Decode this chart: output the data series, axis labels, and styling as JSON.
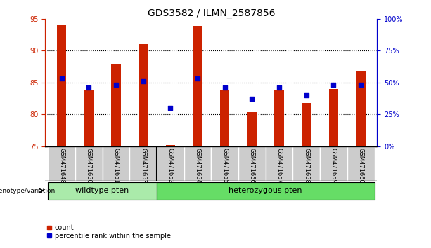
{
  "title": "GDS3582 / ILMN_2587856",
  "samples": [
    "GSM471648",
    "GSM471650",
    "GSM471651",
    "GSM471653",
    "GSM471652",
    "GSM471654",
    "GSM471655",
    "GSM471656",
    "GSM471657",
    "GSM471658",
    "GSM471659",
    "GSM471660"
  ],
  "count_values": [
    94.0,
    83.8,
    87.8,
    91.0,
    75.2,
    93.8,
    83.8,
    80.4,
    83.8,
    81.8,
    84.0,
    86.7
  ],
  "percentile_values": [
    53.0,
    46.0,
    48.0,
    51.0,
    30.0,
    53.0,
    46.0,
    37.0,
    46.0,
    40.0,
    48.0,
    48.0
  ],
  "ylim_left": [
    75,
    95
  ],
  "ylim_right": [
    0,
    100
  ],
  "yticks_left": [
    75,
    80,
    85,
    90,
    95
  ],
  "yticks_right": [
    0,
    25,
    50,
    75,
    100
  ],
  "ytick_labels_right": [
    "0%",
    "25%",
    "50%",
    "75%",
    "100%"
  ],
  "bar_color": "#cc2200",
  "dot_color": "#0000cc",
  "wildtype_samples": 4,
  "wildtype_label": "wildtype pten",
  "heterozygous_label": "heterozygous pten",
  "wildtype_color": "#aaeaaa",
  "heterozygous_color": "#66dd66",
  "genotype_label": "genotype/variation",
  "legend_count": "count",
  "legend_percentile": "percentile rank within the sample",
  "xlabel_bg": "#cccccc",
  "tick_fontsize": 7,
  "title_fontsize": 10,
  "bar_width": 0.35
}
